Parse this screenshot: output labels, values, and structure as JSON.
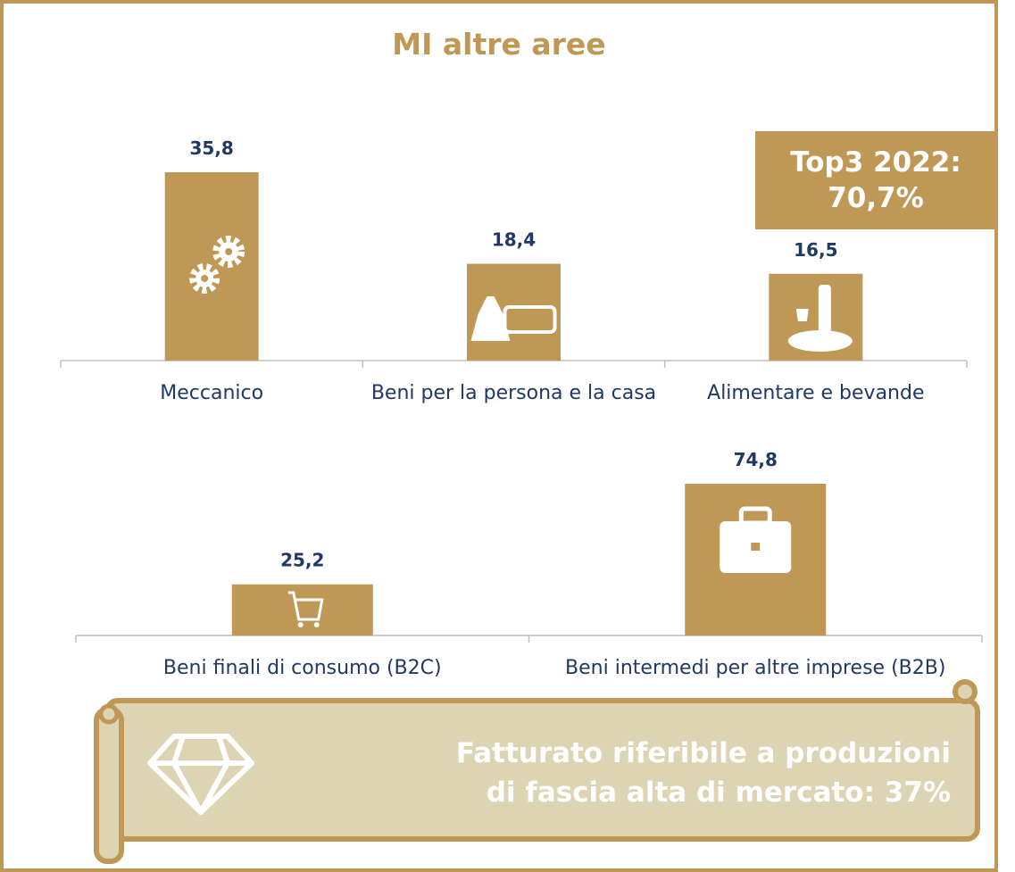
{
  "title": "MI altre aree",
  "badge": "Top3 2022: 70,7%",
  "banner": "Fatturato riferibile a produzioni di fascia alta di mercato: 37%",
  "chart_data": [
    {
      "type": "bar",
      "categories": [
        "Meccanico",
        "Beni per la persona e la casa",
        "Alimentare e bevande"
      ],
      "values": [
        35.8,
        18.4,
        16.5
      ],
      "value_labels": [
        "35,8",
        "18,4",
        "16,5"
      ],
      "color": "#bf9856"
    },
    {
      "type": "bar",
      "categories": [
        "Beni finali di consumo (B2C)",
        "Beni intermedi per altre imprese (B2B)"
      ],
      "values": [
        25.2,
        74.8
      ],
      "value_labels": [
        "25,2",
        "74,8"
      ],
      "color": "#bf9856"
    }
  ]
}
